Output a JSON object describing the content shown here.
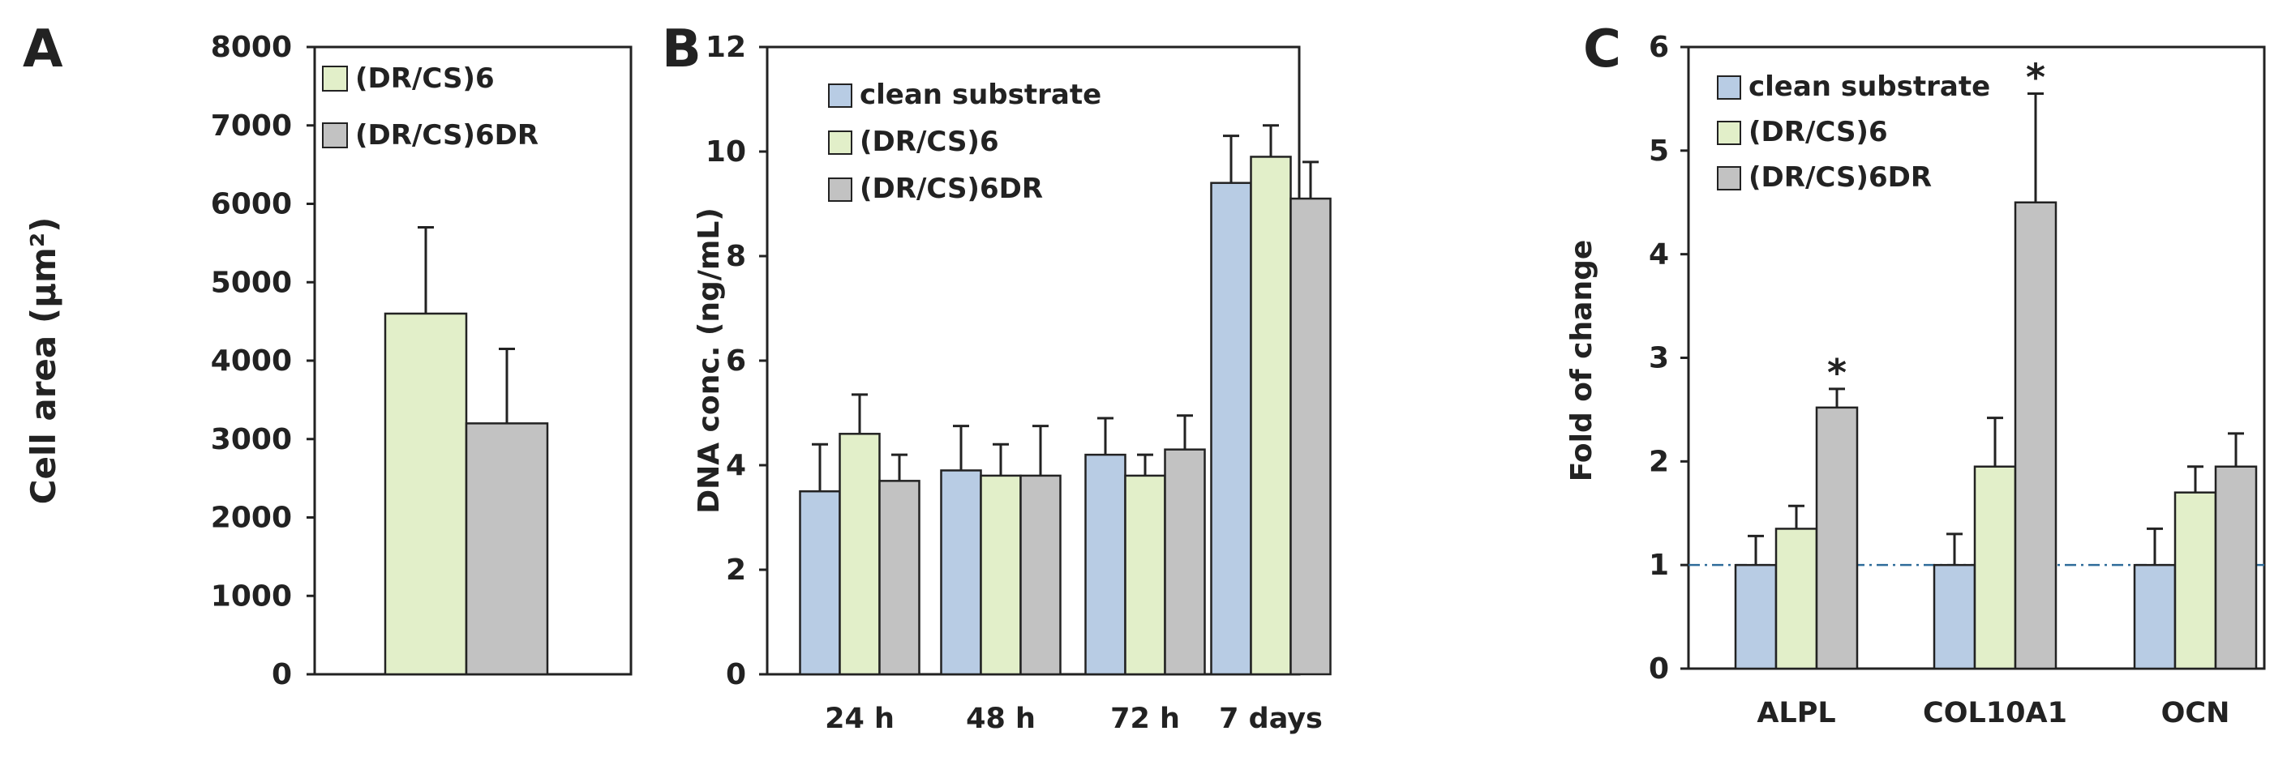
{
  "colors": {
    "clean": "#b8cce4",
    "dr6": "#e2efc9",
    "dr6dr": "#c2c2c2",
    "axis": "#222222",
    "baseline": "#2f6c9a"
  },
  "chart_data": [
    {
      "id": "A",
      "panel_label": "A",
      "type": "bar",
      "ylabel": "Cell area (µm²)",
      "ylim": [
        0,
        8000
      ],
      "yticks": [
        "0",
        "1000",
        "2000",
        "3000",
        "4000",
        "5000",
        "6000",
        "7000",
        "8000"
      ],
      "categories": [
        ""
      ],
      "series": [
        {
          "name": "(DR/CS)6",
          "color_key": "dr6",
          "values": [
            4600
          ],
          "errors": [
            1100
          ]
        },
        {
          "name": "(DR/CS)6DR",
          "color_key": "dr6dr",
          "values": [
            3200
          ],
          "errors": [
            950
          ]
        }
      ],
      "legend": [
        "(DR/CS)6",
        "(DR/CS)6DR"
      ],
      "legend_position": "top-left"
    },
    {
      "id": "B",
      "panel_label": "B",
      "type": "bar",
      "ylabel": "DNA conc. (ng/mL)",
      "ylim": [
        0,
        12
      ],
      "yticks": [
        "0",
        "2",
        "4",
        "6",
        "8",
        "10",
        "12"
      ],
      "categories": [
        "24 h",
        "48 h",
        "72 h",
        "7 days"
      ],
      "series": [
        {
          "name": "clean substrate",
          "color_key": "clean",
          "values": [
            3.5,
            3.9,
            4.2,
            9.4
          ],
          "errors": [
            0.9,
            0.85,
            0.7,
            0.9
          ]
        },
        {
          "name": "(DR/CS)6",
          "color_key": "dr6",
          "values": [
            4.6,
            3.8,
            3.8,
            9.9
          ],
          "errors": [
            0.75,
            0.6,
            0.4,
            0.6
          ]
        },
        {
          "name": "(DR/CS)6DR",
          "color_key": "dr6dr",
          "values": [
            3.7,
            3.8,
            4.3,
            9.1
          ],
          "errors": [
            0.5,
            0.95,
            0.65,
            0.7
          ]
        }
      ],
      "legend": [
        "clean substrate",
        "(DR/CS)6",
        "(DR/CS)6DR"
      ],
      "legend_position": "top-left"
    },
    {
      "id": "C",
      "panel_label": "C",
      "type": "bar",
      "ylabel": "Fold of change",
      "ylim": [
        0,
        6
      ],
      "yticks": [
        "0",
        "1",
        "2",
        "3",
        "4",
        "5",
        "6"
      ],
      "categories": [
        "ALPL",
        "COL10A1",
        "OCN"
      ],
      "series": [
        {
          "name": "clean substrate",
          "color_key": "clean",
          "values": [
            1.0,
            1.0,
            1.0
          ],
          "errors": [
            0.28,
            0.3,
            0.35
          ]
        },
        {
          "name": "(DR/CS)6",
          "color_key": "dr6",
          "values": [
            1.35,
            1.95,
            1.7
          ],
          "errors": [
            0.22,
            0.47,
            0.25
          ]
        },
        {
          "name": "(DR/CS)6DR",
          "color_key": "dr6dr",
          "values": [
            2.52,
            4.5,
            1.95
          ],
          "errors": [
            0.18,
            1.05,
            0.32
          ]
        }
      ],
      "significance": [
        {
          "category": "ALPL",
          "series": "(DR/CS)6DR",
          "mark": "*"
        },
        {
          "category": "COL10A1",
          "series": "(DR/CS)6DR",
          "mark": "*"
        }
      ],
      "reference_line": 1.0,
      "legend": [
        "clean substrate",
        "(DR/CS)6",
        "(DR/CS)6DR"
      ],
      "legend_position": "top-left"
    }
  ]
}
